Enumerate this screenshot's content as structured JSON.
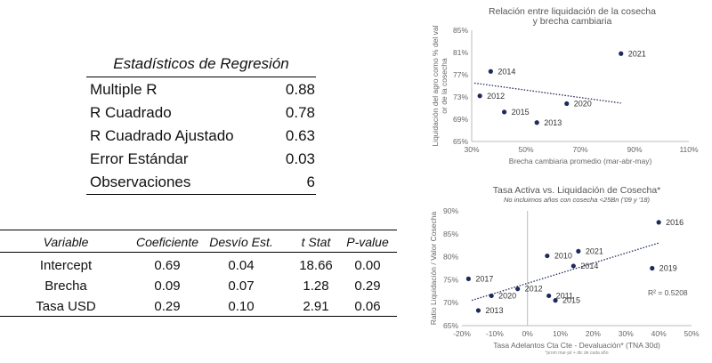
{
  "stats_table": {
    "title": "Estadísticos de Regresión",
    "rows": [
      {
        "label": "Multiple R",
        "value": "0.88"
      },
      {
        "label": "R Cuadrado",
        "value": "0.78"
      },
      {
        "label": "R Cuadrado Ajustado",
        "value": "0.63"
      },
      {
        "label": "Error Estándar",
        "value": "0.03"
      },
      {
        "label": "Observaciones",
        "value": "6"
      }
    ]
  },
  "coef_table": {
    "headers": [
      "Variable",
      "Coeficiente",
      "Desvío Est.",
      "t Stat",
      "P-value"
    ],
    "rows": [
      [
        "Intercept",
        "0.69",
        "0.04",
        "18.66",
        "0.00"
      ],
      [
        "Brecha",
        "0.09",
        "0.07",
        "1.28",
        "0.29"
      ],
      [
        "Tasa USD",
        "0.29",
        "0.10",
        "2.91",
        "0.06"
      ]
    ]
  },
  "chart_data": [
    {
      "type": "scatter",
      "title": "Relación entre liquidación de la cosecha",
      "subtitle": "y brecha cambiaria",
      "xlabel": "Brecha cambiaria promedio (mar-abr-may)",
      "ylabel": "Liquidación del agro como % del valor de la cosecha",
      "xlim": [
        30,
        110
      ],
      "ylim": [
        65,
        85
      ],
      "xticks": [
        "30%",
        "50%",
        "70%",
        "90%",
        "110%"
      ],
      "yticks": [
        "65%",
        "69%",
        "73%",
        "77%",
        "81%",
        "85%"
      ],
      "x_tick_values": [
        30,
        50,
        70,
        90,
        110
      ],
      "y_tick_values": [
        65,
        69,
        73,
        77,
        81,
        85
      ],
      "trendline": {
        "x": [
          31,
          85
        ],
        "y": [
          75.5,
          71.9
        ]
      },
      "points": [
        {
          "label": "2021",
          "x": 85,
          "y": 80.8
        },
        {
          "label": "2014",
          "x": 37,
          "y": 77.6
        },
        {
          "label": "2012",
          "x": 33,
          "y": 73.2
        },
        {
          "label": "2020",
          "x": 65,
          "y": 71.8
        },
        {
          "label": "2015",
          "x": 42,
          "y": 70.3
        },
        {
          "label": "2013",
          "x": 54,
          "y": 68.4
        }
      ],
      "color": "#1f2a5c"
    },
    {
      "type": "scatter",
      "title": "Tasa Activa vs. Liquidación de Cosecha*",
      "subtitle": "No incluimos años con cosecha <25Bn ('09 y '18)",
      "xlabel": "Tasa Adelantos Cta Cte - Devaluación* (TNA 30d)",
      "xlabel_note": "*prom mar-jul + dic de cada año",
      "ylabel": "Ratio Liquidación / Valor Cosecha",
      "xlim": [
        -20,
        50
      ],
      "ylim": [
        65,
        90
      ],
      "xticks": [
        "-20%",
        "-10%",
        "0%",
        "10%",
        "20%",
        "30%",
        "40%",
        "50%"
      ],
      "yticks": [
        "65%",
        "70%",
        "75%",
        "80%",
        "85%",
        "90%"
      ],
      "x_tick_values": [
        -20,
        -10,
        0,
        10,
        20,
        30,
        40,
        50
      ],
      "y_tick_values": [
        65,
        70,
        75,
        80,
        85,
        90
      ],
      "trendline": {
        "x": [
          -17,
          40
        ],
        "y": [
          70.5,
          83.0
        ]
      },
      "annotation": "R² = 0.5208",
      "points": [
        {
          "label": "2016",
          "x": 40,
          "y": 87.5
        },
        {
          "label": "2021",
          "x": 15.5,
          "y": 81.2
        },
        {
          "label": "2010",
          "x": 6,
          "y": 80.2
        },
        {
          "label": "2014",
          "x": 14,
          "y": 78.0
        },
        {
          "label": "2019",
          "x": 38,
          "y": 77.5
        },
        {
          "label": "2017",
          "x": -18,
          "y": 75.2
        },
        {
          "label": "2012",
          "x": -3,
          "y": 73.0
        },
        {
          "label": "2020",
          "x": -11,
          "y": 71.5
        },
        {
          "label": "2011",
          "x": 6.5,
          "y": 71.5
        },
        {
          "label": "2015",
          "x": 8.5,
          "y": 70.5
        },
        {
          "label": "2013",
          "x": -15,
          "y": 68.3
        }
      ],
      "color": "#1f2a5c"
    }
  ]
}
